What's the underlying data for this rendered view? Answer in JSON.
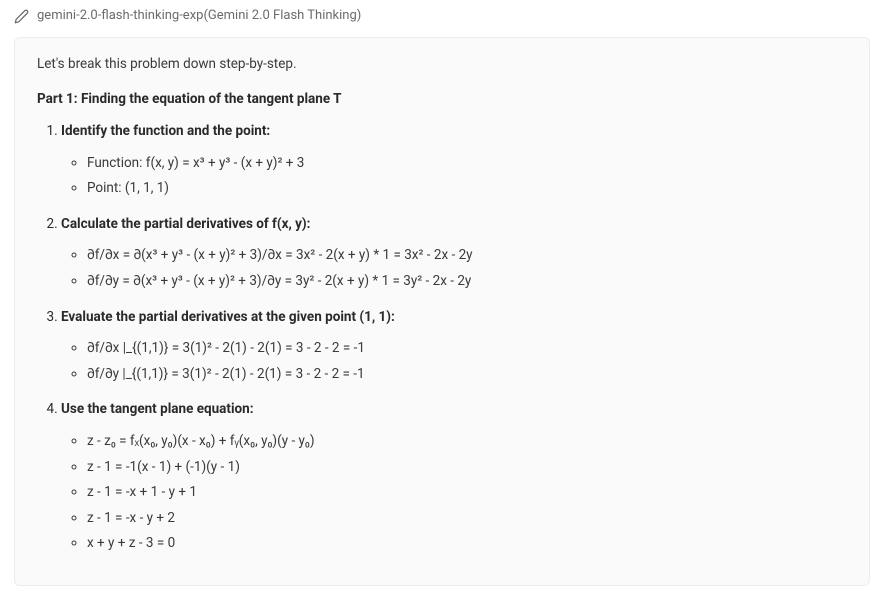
{
  "header": {
    "model_label": "gemini-2.0-flash-thinking-exp(Gemini 2.0 Flash Thinking)"
  },
  "content": {
    "intro": "Let's break this problem down step-by-step.",
    "part_title": "Part 1: Finding the equation of the tangent plane T",
    "steps": [
      {
        "title": "Identify the function and the point:",
        "items": [
          "Function: f(x, y) = x³ + y³ - (x + y)² + 3",
          "Point: (1, 1, 1)"
        ]
      },
      {
        "title": "Calculate the partial derivatives of f(x, y):",
        "items": [
          "∂f/∂x = ∂(x³ + y³ - (x + y)² + 3)/∂x = 3x² - 2(x + y) * 1 = 3x² - 2x - 2y",
          "∂f/∂y = ∂(x³ + y³ - (x + y)² + 3)/∂y = 3y² - 2(x + y) * 1 = 3y² - 2x - 2y"
        ]
      },
      {
        "title": "Evaluate the partial derivatives at the given point (1, 1):",
        "items": [
          "∂f/∂x |_{(1,1)} = 3(1)² - 2(1) - 2(1) = 3 - 2 - 2 = -1",
          "∂f/∂y |_{(1,1)} = 3(1)² - 2(1) - 2(1) = 3 - 2 - 2 = -1"
        ]
      },
      {
        "title": "Use the tangent plane equation:",
        "items": [
          "z - z₀ = fₓ(x₀, y₀)(x - x₀) + fᵧ(x₀, y₀)(y - y₀)",
          "z - 1 = -1(x - 1) + (-1)(y - 1)",
          "z - 1 = -x + 1 - y + 1",
          "z - 1 = -x - y + 2",
          "x + y + z - 3 = 0"
        ]
      }
    ]
  }
}
